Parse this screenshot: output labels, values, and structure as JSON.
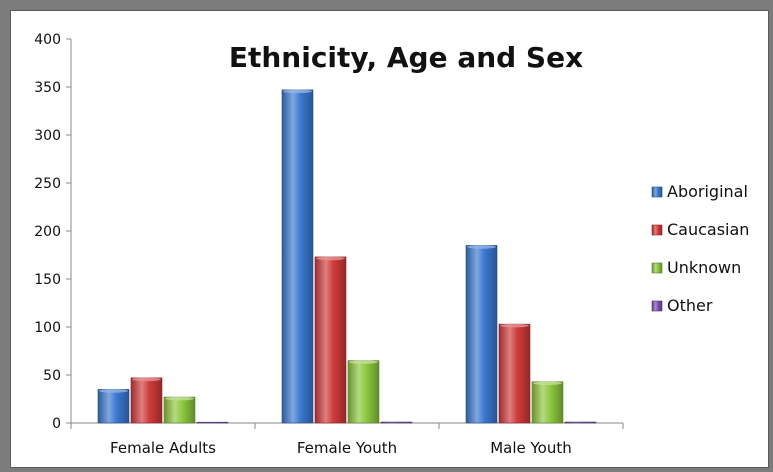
{
  "chart_data": {
    "type": "bar",
    "title": "Ethnicity, Age and Sex",
    "xlabel": "",
    "ylabel": "",
    "categories": [
      "Female Adults",
      "Female Youth",
      "Male Youth"
    ],
    "series": [
      {
        "name": "Aboriginal",
        "values": [
          35,
          347,
          185
        ],
        "color": "#3a78d0"
      },
      {
        "name": "Caucasian",
        "values": [
          47,
          173,
          103
        ],
        "color": "#d03a3a"
      },
      {
        "name": "Unknown",
        "values": [
          27,
          65,
          43
        ],
        "color": "#8cc63f"
      },
      {
        "name": "Other",
        "values": [
          0,
          1,
          1
        ],
        "color": "#7a4fb0"
      }
    ],
    "ylim": [
      0,
      400
    ],
    "yticks": [
      "0",
      "50",
      "100",
      "150",
      "200",
      "250",
      "300",
      "350",
      "400"
    ],
    "grid": false,
    "legend_position": "right"
  }
}
